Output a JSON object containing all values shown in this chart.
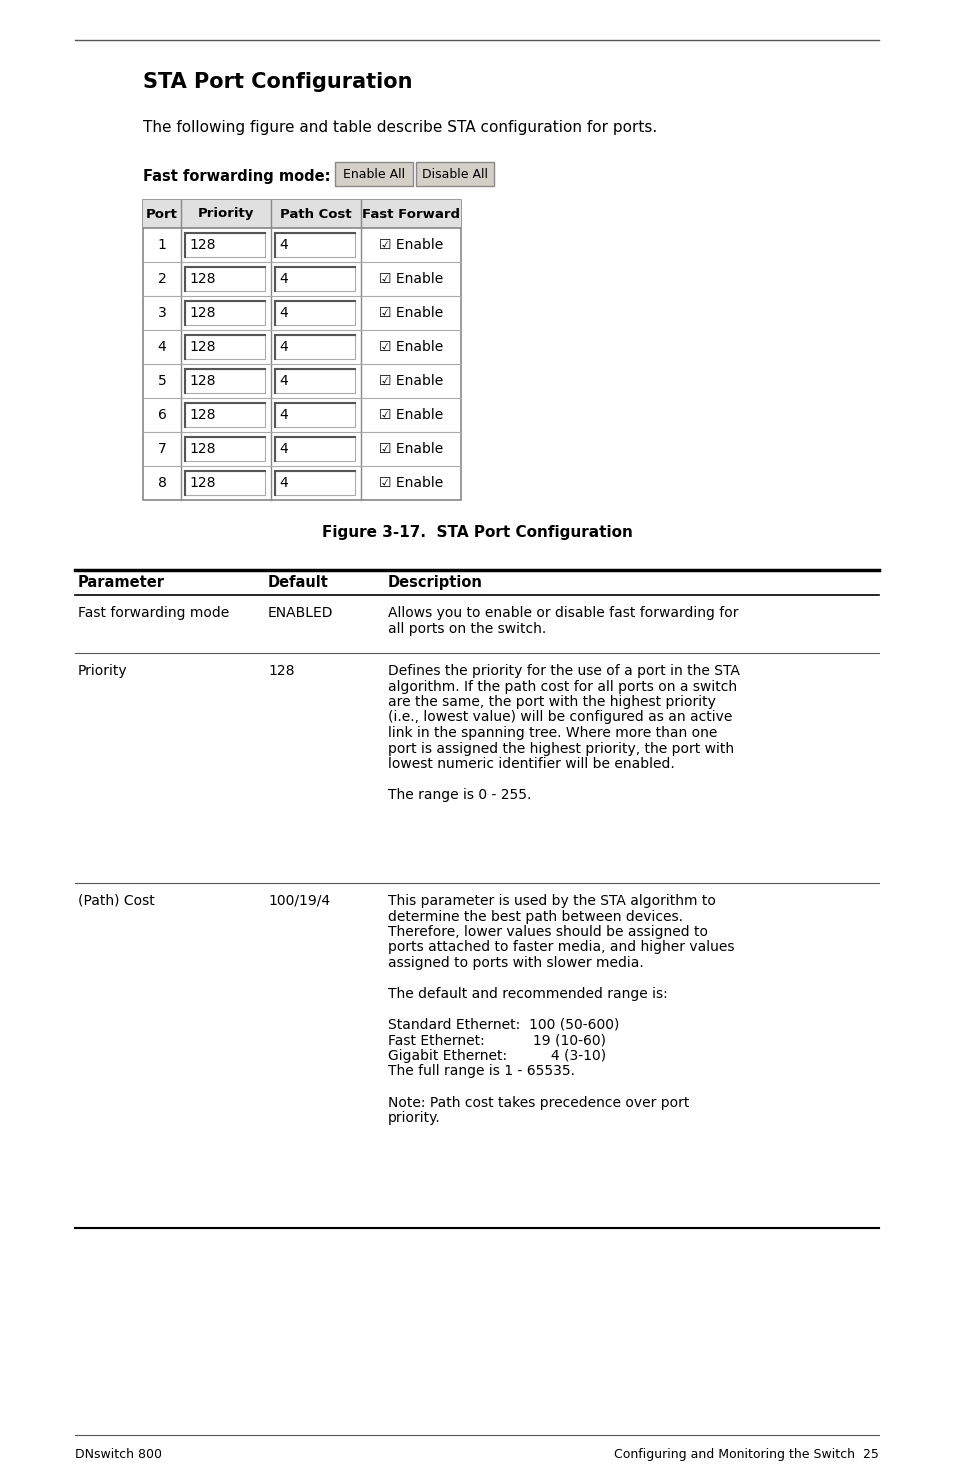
{
  "title": "STA Port Configuration",
  "intro_text": "The following figure and table describe STA configuration for ports.",
  "figure_caption": "Figure 3-17.  STA Port Configuration",
  "table_headers": [
    "Port",
    "Priority",
    "Path Cost",
    "Fast Forward"
  ],
  "table_rows": [
    [
      "1",
      "128",
      "4",
      "☑ Enable"
    ],
    [
      "2",
      "128",
      "4",
      "☑ Enable"
    ],
    [
      "3",
      "128",
      "4",
      "☑ Enable"
    ],
    [
      "4",
      "128",
      "4",
      "☑ Enable"
    ],
    [
      "5",
      "128",
      "4",
      "☑ Enable"
    ],
    [
      "6",
      "128",
      "4",
      "☑ Enable"
    ],
    [
      "7",
      "128",
      "4",
      "☑ Enable"
    ],
    [
      "8",
      "128",
      "4",
      "☑ Enable"
    ]
  ],
  "param_table_headers": [
    "Parameter",
    "Default",
    "Description"
  ],
  "footer_left": "DNswitch 800",
  "footer_right": "Configuring and Monitoring the Switch  25",
  "bg_color": "#ffffff"
}
